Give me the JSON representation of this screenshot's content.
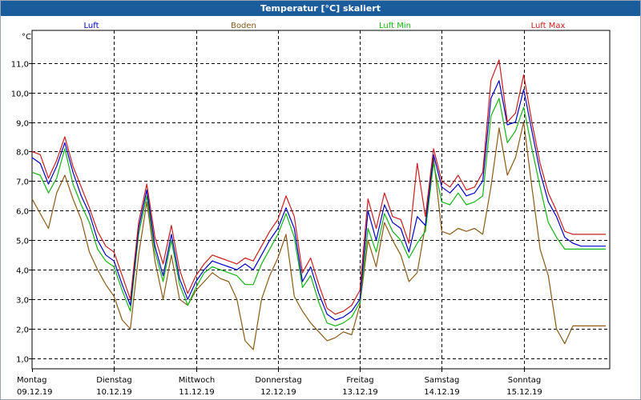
{
  "window": {
    "title": "Temperatur [°C] skaliert"
  },
  "chart_data": {
    "type": "line",
    "title": "Temperatur [°C] skaliert",
    "ylabel": "°C",
    "ylim": [
      0.65,
      12.1
    ],
    "xlim": [
      0,
      7.05
    ],
    "yticks": [
      "1,0",
      "2,0",
      "3,0",
      "4,0",
      "5,0",
      "6,0",
      "7,0",
      "8,0",
      "9,0",
      "10,0",
      "11,0"
    ],
    "xticks": [
      {
        "day": "Montag",
        "date": "09.12.19"
      },
      {
        "day": "Dienstag",
        "date": "10.12.19"
      },
      {
        "day": "Mittwoch",
        "date": "11.12.19"
      },
      {
        "day": "Donnerstag",
        "date": "12.12.19"
      },
      {
        "day": "Freitag",
        "date": "13.12.19"
      },
      {
        "day": "Samstag",
        "date": "14.12.19"
      },
      {
        "day": "Sonntag",
        "date": "15.12.19"
      }
    ],
    "grid": true,
    "x": [
      0,
      0.1,
      0.2,
      0.3,
      0.4,
      0.5,
      0.6,
      0.7,
      0.8,
      0.9,
      1.0,
      1.1,
      1.2,
      1.3,
      1.4,
      1.5,
      1.6,
      1.7,
      1.8,
      1.9,
      2.0,
      2.1,
      2.2,
      2.3,
      2.4,
      2.5,
      2.6,
      2.7,
      2.8,
      2.9,
      3.0,
      3.1,
      3.2,
      3.3,
      3.4,
      3.5,
      3.6,
      3.7,
      3.8,
      3.9,
      4.0,
      4.1,
      4.2,
      4.3,
      4.4,
      4.5,
      4.6,
      4.7,
      4.8,
      4.9,
      5.0,
      5.1,
      5.2,
      5.3,
      5.4,
      5.5,
      5.6,
      5.7,
      5.8,
      5.9,
      6.0,
      6.1,
      6.2,
      6.3,
      6.4,
      6.5,
      6.6,
      6.7,
      6.8,
      6.9,
      7.0
    ],
    "series": [
      {
        "name": "Luft",
        "color": "#0000c8",
        "values": [
          7.8,
          7.6,
          6.9,
          7.5,
          8.3,
          7.3,
          6.5,
          5.9,
          5.0,
          4.5,
          4.3,
          3.5,
          2.8,
          5.4,
          6.7,
          4.8,
          3.8,
          5.2,
          3.7,
          3.0,
          3.6,
          4.0,
          4.3,
          4.2,
          4.1,
          4.0,
          4.2,
          4.0,
          4.5,
          5.0,
          5.4,
          6.1,
          5.4,
          3.6,
          4.1,
          3.2,
          2.5,
          2.3,
          2.4,
          2.6,
          3.0,
          6.0,
          5.0,
          6.2,
          5.6,
          5.4,
          4.6,
          5.8,
          5.5,
          7.9,
          6.8,
          6.6,
          6.9,
          6.5,
          6.6,
          7.0,
          9.8,
          10.4,
          8.9,
          9.0,
          10.1,
          8.7,
          7.3,
          6.3,
          5.8,
          5.1,
          4.9,
          4.8,
          4.8,
          4.8,
          4.8
        ]
      },
      {
        "name": "Boden",
        "color": "#8b5a14",
        "values": [
          6.4,
          5.9,
          5.4,
          6.6,
          7.2,
          6.4,
          5.7,
          4.6,
          4.0,
          3.5,
          3.1,
          2.3,
          2.0,
          4.5,
          6.3,
          4.3,
          3.0,
          4.5,
          3.0,
          2.8,
          3.3,
          3.6,
          3.9,
          3.7,
          3.6,
          3.0,
          1.6,
          1.3,
          3.0,
          3.8,
          4.4,
          5.2,
          3.1,
          2.6,
          2.2,
          1.9,
          1.6,
          1.7,
          1.9,
          1.8,
          2.8,
          5.0,
          4.1,
          5.6,
          5.0,
          4.5,
          3.6,
          3.9,
          5.5,
          7.8,
          5.3,
          5.2,
          5.4,
          5.3,
          5.4,
          5.2,
          6.8,
          8.8,
          7.2,
          7.8,
          9.0,
          6.8,
          4.7,
          3.8,
          2.0,
          1.5,
          2.1,
          2.1,
          2.1,
          2.1,
          2.1
        ]
      },
      {
        "name": "Luft Min",
        "color": "#14b414",
        "values": [
          7.3,
          7.2,
          6.6,
          7.1,
          8.1,
          6.9,
          6.2,
          5.6,
          4.7,
          4.3,
          4.1,
          3.3,
          2.6,
          5.2,
          6.5,
          4.6,
          3.6,
          5.0,
          3.5,
          2.8,
          3.4,
          3.9,
          4.1,
          4.0,
          3.9,
          3.8,
          3.5,
          3.5,
          4.2,
          4.7,
          5.2,
          5.9,
          5.1,
          3.4,
          3.8,
          2.9,
          2.2,
          2.1,
          2.2,
          2.4,
          2.9,
          5.4,
          4.6,
          5.9,
          5.3,
          5.0,
          4.4,
          4.9,
          5.3,
          7.6,
          6.3,
          6.2,
          6.6,
          6.2,
          6.3,
          6.5,
          9.2,
          9.8,
          8.3,
          8.7,
          9.5,
          8.1,
          6.8,
          5.6,
          5.1,
          4.7,
          4.7,
          4.7,
          4.7,
          4.7,
          4.7
        ]
      },
      {
        "name": "Luft Max",
        "color": "#c81e1e",
        "values": [
          8.0,
          7.9,
          7.1,
          7.7,
          8.5,
          7.5,
          6.8,
          6.1,
          5.3,
          4.8,
          4.6,
          3.8,
          3.0,
          5.6,
          6.9,
          5.1,
          4.2,
          5.5,
          4.0,
          3.2,
          3.8,
          4.2,
          4.5,
          4.4,
          4.3,
          4.2,
          4.4,
          4.3,
          4.8,
          5.3,
          5.7,
          6.5,
          5.8,
          3.9,
          4.4,
          3.5,
          2.7,
          2.5,
          2.6,
          2.8,
          3.3,
          6.4,
          5.4,
          6.6,
          5.8,
          5.7,
          4.9,
          7.6,
          5.8,
          8.1,
          7.0,
          6.8,
          7.2,
          6.7,
          6.8,
          7.3,
          10.4,
          11.1,
          9.0,
          9.3,
          10.6,
          9.0,
          7.6,
          6.6,
          6.0,
          5.3,
          5.2,
          5.2,
          5.2,
          5.2,
          5.2
        ]
      }
    ]
  }
}
